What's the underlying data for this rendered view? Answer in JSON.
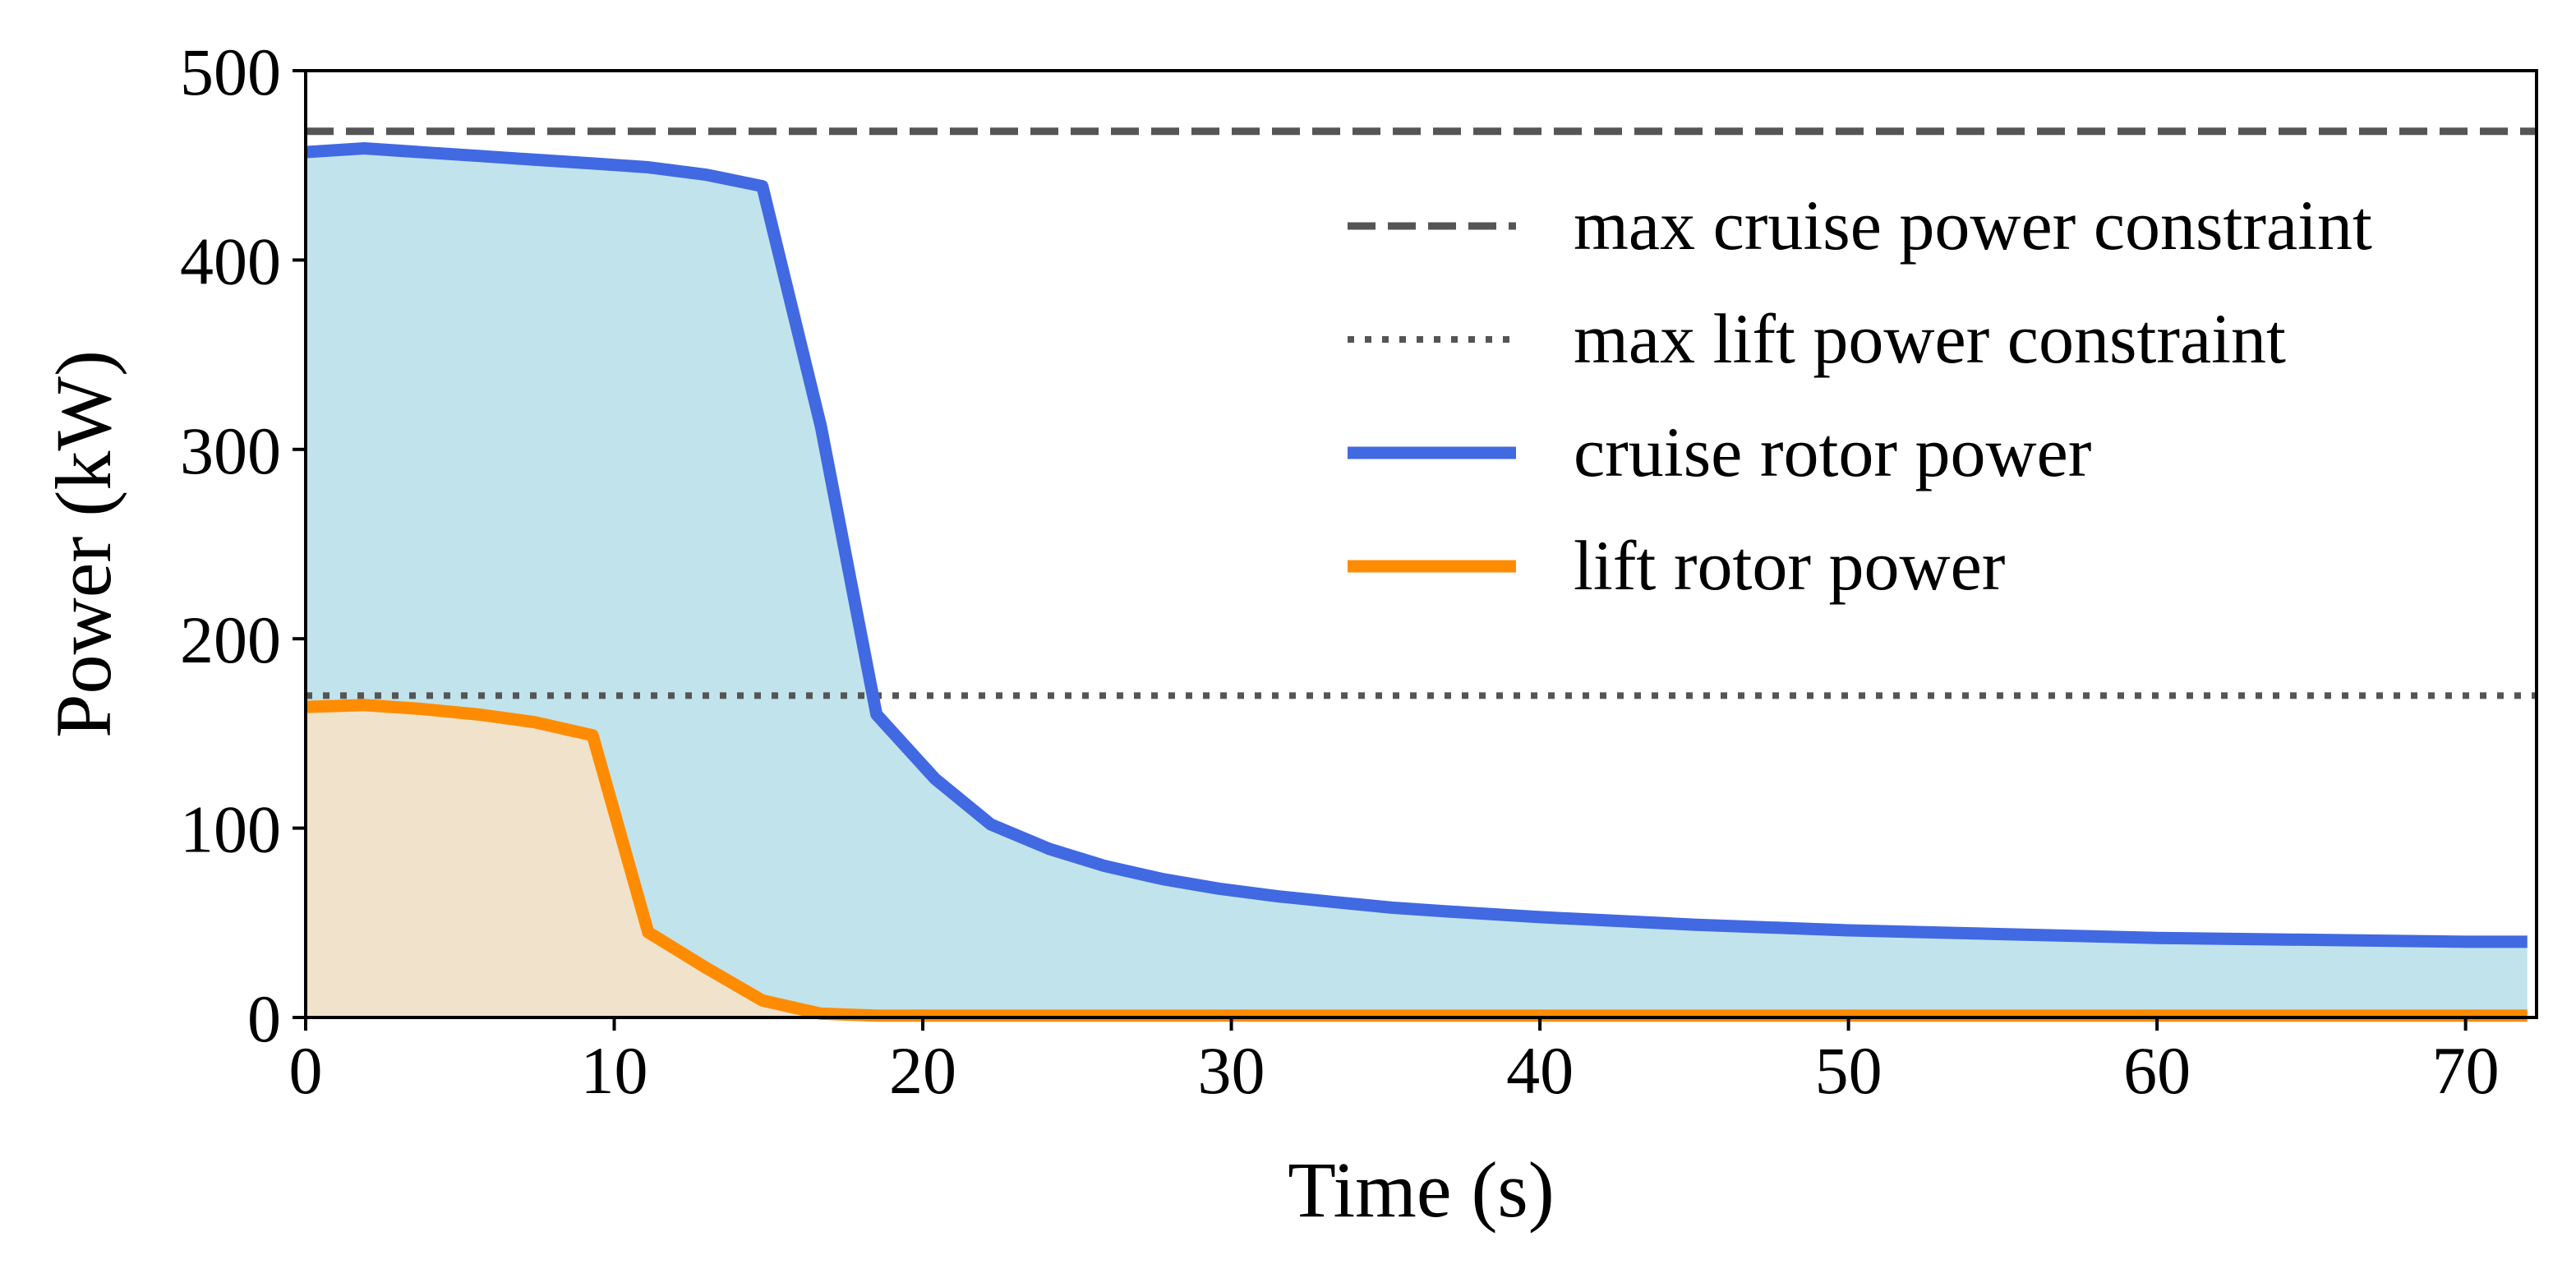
{
  "chart_data": {
    "type": "line",
    "xlabel": "Time (s)",
    "ylabel": "Power (kW)",
    "xlim": [
      0,
      72.3
    ],
    "ylim": [
      0,
      500
    ],
    "xticks": [
      0,
      10,
      20,
      30,
      40,
      50,
      60,
      70
    ],
    "yticks": [
      0,
      100,
      200,
      300,
      400,
      500
    ],
    "grid": false,
    "legend_position": "top-right",
    "constraints": [
      {
        "name": "max cruise power constraint",
        "value": 468,
        "style": "dashed",
        "color": "#555555"
      },
      {
        "name": "max lift power constraint",
        "value": 170,
        "style": "dotted",
        "color": "#555555"
      }
    ],
    "series": [
      {
        "name": "cruise rotor power",
        "color": "#4169e1",
        "fill": "#c1e3ec",
        "x": [
          0,
          1.9,
          3.7,
          5.6,
          7.4,
          9.3,
          11.1,
          13.0,
          14.8,
          16.7,
          18.5,
          20.4,
          22.2,
          24.1,
          25.9,
          27.8,
          29.6,
          31.5,
          33.3,
          35.2,
          37.0,
          40.0,
          45.0,
          50.0,
          55.0,
          60.0,
          65.0,
          70.0,
          72.0
        ],
        "y": [
          457,
          459,
          457,
          455,
          453,
          451,
          449,
          445,
          439,
          312,
          160,
          126,
          102,
          89,
          80,
          73,
          68,
          64,
          61,
          58,
          56,
          53,
          49,
          46,
          44,
          42,
          41,
          40,
          40
        ]
      },
      {
        "name": "lift rotor power",
        "color": "#ff8c00",
        "fill": "#f1e2cc",
        "x": [
          0,
          1.9,
          3.7,
          5.6,
          7.4,
          9.3,
          11.1,
          13.0,
          14.8,
          16.7,
          18.5,
          20.0,
          30.0,
          40.0,
          50.0,
          60.0,
          72.0
        ],
        "y": [
          164,
          165,
          163,
          160,
          156,
          149,
          45,
          26,
          9,
          2,
          1,
          1,
          1,
          1,
          1,
          1,
          1
        ]
      }
    ]
  }
}
